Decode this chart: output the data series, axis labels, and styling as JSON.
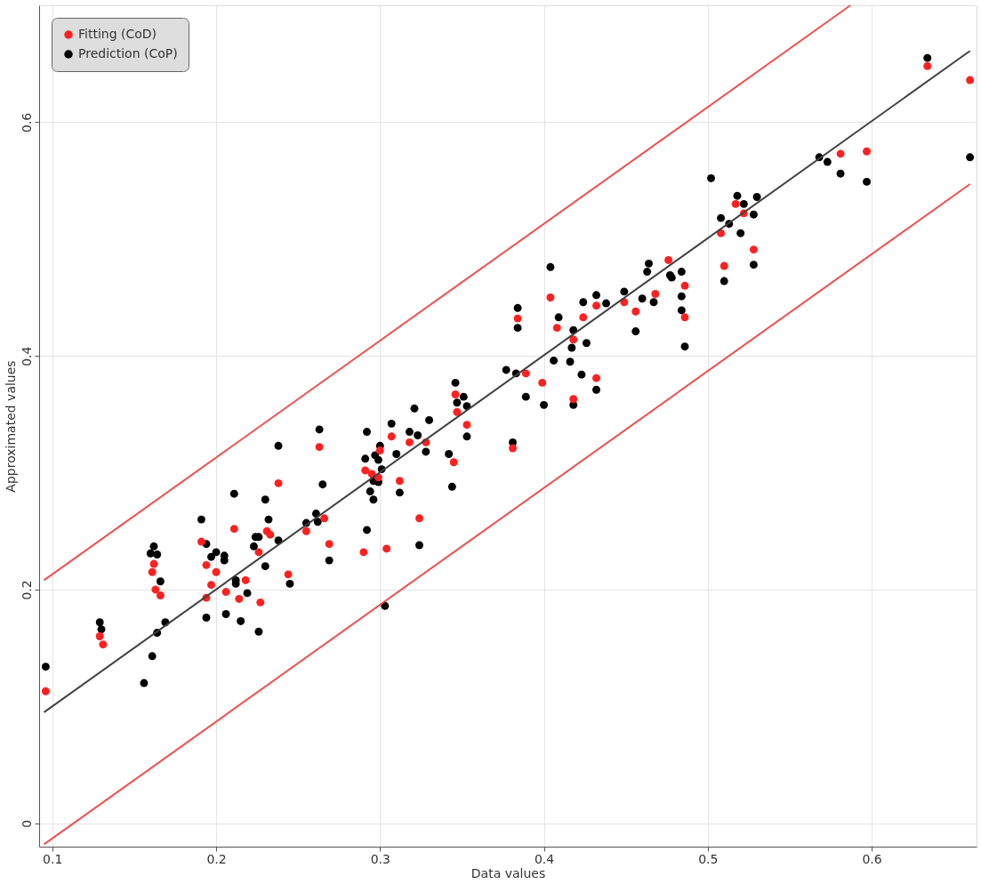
{
  "chart_data": {
    "type": "scatter",
    "xlabel": "Data values",
    "ylabel": "Approximated values",
    "xlim": [
      0.092,
      0.664
    ],
    "ylim": [
      -0.02,
      0.7
    ],
    "xticks": [
      0.1,
      0.2,
      0.3,
      0.4,
      0.5,
      0.6
    ],
    "yticks": [
      0,
      0.2,
      0.4,
      0.6
    ],
    "grid": true,
    "legend": "top left",
    "marker": "circle",
    "series": [
      {
        "name": "Fitting (CoD)",
        "color": "#ff2020",
        "x": [
          0.263,
          0.238,
          0.211,
          0.191,
          0.231,
          0.233,
          0.266,
          0.269,
          0.255,
          0.226,
          0.194,
          0.162,
          0.161,
          0.2,
          0.197,
          0.218,
          0.244,
          0.163,
          0.166,
          0.206,
          0.194,
          0.214,
          0.227,
          0.129,
          0.131,
          0.346,
          0.347,
          0.353,
          0.307,
          0.318,
          0.328,
          0.3,
          0.345,
          0.291,
          0.295,
          0.299,
          0.312,
          0.324,
          0.29,
          0.304,
          0.476,
          0.528,
          0.51,
          0.404,
          0.384,
          0.486,
          0.468,
          0.449,
          0.456,
          0.432,
          0.424,
          0.408,
          0.486,
          0.418,
          0.389,
          0.399,
          0.432,
          0.418,
          0.634,
          0.66,
          0.581,
          0.597,
          0.517,
          0.522,
          0.508,
          0.096,
          0.381
        ],
        "values": [
          0.322,
          0.291,
          0.252,
          0.241,
          0.25,
          0.247,
          0.261,
          0.239,
          0.25,
          0.232,
          0.221,
          0.222,
          0.215,
          0.215,
          0.204,
          0.208,
          0.213,
          0.2,
          0.195,
          0.198,
          0.193,
          0.192,
          0.189,
          0.16,
          0.153,
          0.367,
          0.352,
          0.341,
          0.331,
          0.326,
          0.326,
          0.319,
          0.309,
          0.302,
          0.299,
          0.296,
          0.293,
          0.261,
          0.232,
          0.235,
          0.482,
          0.491,
          0.477,
          0.45,
          0.432,
          0.46,
          0.453,
          0.446,
          0.438,
          0.443,
          0.433,
          0.424,
          0.433,
          0.414,
          0.385,
          0.377,
          0.381,
          0.363,
          0.648,
          0.636,
          0.573,
          0.575,
          0.53,
          0.522,
          0.505,
          0.113,
          0.321
        ]
      },
      {
        "name": "Prediction (CoP)",
        "color": "#000000",
        "x": [
          0.263,
          0.238,
          0.265,
          0.211,
          0.23,
          0.191,
          0.232,
          0.261,
          0.262,
          0.255,
          0.162,
          0.16,
          0.164,
          0.194,
          0.2,
          0.197,
          0.205,
          0.205,
          0.224,
          0.226,
          0.223,
          0.238,
          0.269,
          0.23,
          0.166,
          0.212,
          0.212,
          0.219,
          0.245,
          0.194,
          0.206,
          0.129,
          0.13,
          0.169,
          0.164,
          0.161,
          0.215,
          0.226,
          0.156,
          0.377,
          0.346,
          0.351,
          0.347,
          0.353,
          0.321,
          0.307,
          0.33,
          0.318,
          0.323,
          0.292,
          0.3,
          0.31,
          0.291,
          0.297,
          0.299,
          0.301,
          0.296,
          0.299,
          0.294,
          0.296,
          0.328,
          0.342,
          0.353,
          0.381,
          0.312,
          0.344,
          0.292,
          0.324,
          0.303,
          0.404,
          0.464,
          0.463,
          0.484,
          0.477,
          0.478,
          0.384,
          0.384,
          0.409,
          0.424,
          0.432,
          0.438,
          0.449,
          0.46,
          0.467,
          0.484,
          0.484,
          0.418,
          0.417,
          0.426,
          0.456,
          0.486,
          0.406,
          0.416,
          0.383,
          0.423,
          0.389,
          0.4,
          0.418,
          0.432,
          0.528,
          0.51,
          0.634,
          0.66,
          0.568,
          0.573,
          0.581,
          0.597,
          0.502,
          0.518,
          0.522,
          0.53,
          0.508,
          0.513,
          0.528,
          0.52,
          0.096
        ],
        "values": [
          0.337,
          0.323,
          0.29,
          0.282,
          0.277,
          0.26,
          0.26,
          0.265,
          0.258,
          0.257,
          0.237,
          0.231,
          0.23,
          0.239,
          0.232,
          0.228,
          0.229,
          0.225,
          0.245,
          0.245,
          0.237,
          0.242,
          0.225,
          0.22,
          0.207,
          0.208,
          0.205,
          0.197,
          0.205,
          0.176,
          0.179,
          0.172,
          0.166,
          0.172,
          0.163,
          0.143,
          0.173,
          0.164,
          0.12,
          0.388,
          0.377,
          0.365,
          0.36,
          0.357,
          0.355,
          0.342,
          0.345,
          0.335,
          0.332,
          0.335,
          0.323,
          0.316,
          0.312,
          0.315,
          0.311,
          0.303,
          0.293,
          0.292,
          0.284,
          0.277,
          0.318,
          0.316,
          0.331,
          0.326,
          0.283,
          0.288,
          0.251,
          0.238,
          0.186,
          0.476,
          0.479,
          0.472,
          0.472,
          0.469,
          0.467,
          0.441,
          0.424,
          0.433,
          0.446,
          0.452,
          0.445,
          0.455,
          0.449,
          0.446,
          0.451,
          0.439,
          0.422,
          0.407,
          0.411,
          0.421,
          0.408,
          0.396,
          0.395,
          0.385,
          0.384,
          0.365,
          0.358,
          0.358,
          0.371,
          0.478,
          0.464,
          0.655,
          0.57,
          0.57,
          0.566,
          0.556,
          0.549,
          0.552,
          0.537,
          0.53,
          0.536,
          0.518,
          0.513,
          0.521,
          0.505,
          0.134
        ]
      },
      {
        "type": "line",
        "marker": "none",
        "line_style": "solid",
        "color": "#404040",
        "x": [
          0.095,
          0.66
        ],
        "values": [
          0.095,
          0.661
        ]
      },
      {
        "type": "line",
        "marker": "none",
        "line_style": "solid",
        "color": "#f05050",
        "x": [
          0.095,
          0.587
        ],
        "values": [
          0.208,
          0.7
        ]
      },
      {
        "type": "line",
        "marker": "none",
        "line_style": "solid",
        "color": "#f05050",
        "x": [
          0.095,
          0.66
        ],
        "values": [
          -0.018,
          0.547
        ]
      }
    ]
  }
}
